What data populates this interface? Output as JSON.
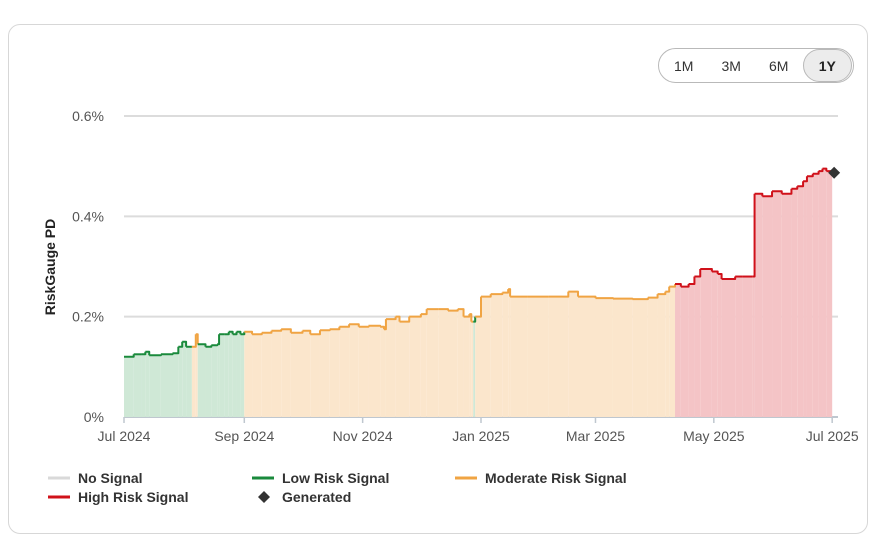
{
  "range_selector": {
    "options": [
      "1M",
      "3M",
      "6M",
      "1Y"
    ],
    "selected": "1Y"
  },
  "chart_data": {
    "type": "line",
    "ylabel": "RiskGauge PD",
    "xlabel": "",
    "ylim": [
      0,
      0.6
    ],
    "y_ticks": [
      0,
      0.2,
      0.4,
      0.6
    ],
    "y_tick_labels": [
      "0%",
      "0.2%",
      "0.4%",
      "0.6%"
    ],
    "x_range": [
      "2024-07-01",
      "2025-07-04"
    ],
    "x_ticks": [
      "2024-07-01",
      "2024-09-01",
      "2024-11-01",
      "2025-01-01",
      "2025-03-01",
      "2025-05-01",
      "2025-07-01"
    ],
    "x_tick_labels": [
      "Jul 2024",
      "Sep 2024",
      "Nov 2024",
      "Jan 2025",
      "Mar 2025",
      "May 2025",
      "Jul 2025"
    ],
    "grid": "horizontal",
    "area_fill": true,
    "colors": {
      "no_signal": "#d9d9d9",
      "low": "#1a8a3c",
      "moderate": "#f0a443",
      "high": "#d0111a",
      "generated": "#333333"
    },
    "series_points": [
      [
        "2024-07-01",
        0.12,
        "low"
      ],
      [
        "2024-07-06",
        0.125,
        "low"
      ],
      [
        "2024-07-10",
        0.125,
        "low"
      ],
      [
        "2024-07-12",
        0.13,
        "low"
      ],
      [
        "2024-07-14",
        0.123,
        "low"
      ],
      [
        "2024-07-20",
        0.125,
        "low"
      ],
      [
        "2024-07-26",
        0.127,
        "low"
      ],
      [
        "2024-07-29",
        0.14,
        "low"
      ],
      [
        "2024-07-31",
        0.15,
        "low"
      ],
      [
        "2024-08-02",
        0.14,
        "low"
      ],
      [
        "2024-08-05",
        0.14,
        "moderate"
      ],
      [
        "2024-08-07",
        0.165,
        "moderate"
      ],
      [
        "2024-08-08",
        0.145,
        "low"
      ],
      [
        "2024-08-12",
        0.14,
        "low"
      ],
      [
        "2024-08-15",
        0.143,
        "low"
      ],
      [
        "2024-08-18",
        0.145,
        "low"
      ],
      [
        "2024-08-19",
        0.165,
        "low"
      ],
      [
        "2024-08-22",
        0.165,
        "low"
      ],
      [
        "2024-08-24",
        0.17,
        "low"
      ],
      [
        "2024-08-26",
        0.165,
        "low"
      ],
      [
        "2024-08-28",
        0.17,
        "low"
      ],
      [
        "2024-08-30",
        0.165,
        "low"
      ],
      [
        "2024-09-01",
        0.17,
        "moderate"
      ],
      [
        "2024-09-05",
        0.165,
        "moderate"
      ],
      [
        "2024-09-10",
        0.168,
        "moderate"
      ],
      [
        "2024-09-15",
        0.172,
        "moderate"
      ],
      [
        "2024-09-20",
        0.175,
        "moderate"
      ],
      [
        "2024-09-25",
        0.168,
        "moderate"
      ],
      [
        "2024-10-01",
        0.172,
        "moderate"
      ],
      [
        "2024-10-05",
        0.165,
        "moderate"
      ],
      [
        "2024-10-10",
        0.173,
        "moderate"
      ],
      [
        "2024-10-15",
        0.175,
        "moderate"
      ],
      [
        "2024-10-20",
        0.18,
        "moderate"
      ],
      [
        "2024-10-25",
        0.185,
        "moderate"
      ],
      [
        "2024-10-30",
        0.18,
        "moderate"
      ],
      [
        "2024-11-04",
        0.182,
        "moderate"
      ],
      [
        "2024-11-10",
        0.18,
        "moderate"
      ],
      [
        "2024-11-12",
        0.175,
        "moderate"
      ],
      [
        "2024-11-13",
        0.195,
        "moderate"
      ],
      [
        "2024-11-18",
        0.2,
        "moderate"
      ],
      [
        "2024-11-20",
        0.19,
        "moderate"
      ],
      [
        "2024-11-25",
        0.2,
        "moderate"
      ],
      [
        "2024-12-01",
        0.205,
        "moderate"
      ],
      [
        "2024-12-04",
        0.215,
        "moderate"
      ],
      [
        "2024-12-10",
        0.215,
        "moderate"
      ],
      [
        "2024-12-15",
        0.212,
        "moderate"
      ],
      [
        "2024-12-20",
        0.215,
        "moderate"
      ],
      [
        "2024-12-23",
        0.2,
        "moderate"
      ],
      [
        "2024-12-26",
        0.205,
        "moderate"
      ],
      [
        "2024-12-27",
        0.19,
        "moderate"
      ],
      [
        "2024-12-28",
        0.19,
        "low"
      ],
      [
        "2024-12-29",
        0.2,
        "moderate"
      ],
      [
        "2025-01-01",
        0.24,
        "moderate"
      ],
      [
        "2025-01-06",
        0.245,
        "moderate"
      ],
      [
        "2025-01-12",
        0.248,
        "moderate"
      ],
      [
        "2025-01-15",
        0.255,
        "moderate"
      ],
      [
        "2025-01-16",
        0.24,
        "moderate"
      ],
      [
        "2025-01-25",
        0.24,
        "moderate"
      ],
      [
        "2025-02-05",
        0.24,
        "moderate"
      ],
      [
        "2025-02-12",
        0.24,
        "moderate"
      ],
      [
        "2025-02-15",
        0.25,
        "moderate"
      ],
      [
        "2025-02-20",
        0.24,
        "moderate"
      ],
      [
        "2025-03-01",
        0.237,
        "moderate"
      ],
      [
        "2025-03-10",
        0.236,
        "moderate"
      ],
      [
        "2025-03-20",
        0.235,
        "moderate"
      ],
      [
        "2025-03-28",
        0.238,
        "moderate"
      ],
      [
        "2025-04-02",
        0.245,
        "moderate"
      ],
      [
        "2025-04-06",
        0.25,
        "moderate"
      ],
      [
        "2025-04-08",
        0.26,
        "moderate"
      ],
      [
        "2025-04-11",
        0.265,
        "high"
      ],
      [
        "2025-04-14",
        0.26,
        "high"
      ],
      [
        "2025-04-18",
        0.265,
        "high"
      ],
      [
        "2025-04-21",
        0.28,
        "high"
      ],
      [
        "2025-04-24",
        0.295,
        "high"
      ],
      [
        "2025-04-30",
        0.29,
        "high"
      ],
      [
        "2025-05-03",
        0.285,
        "high"
      ],
      [
        "2025-05-05",
        0.275,
        "high"
      ],
      [
        "2025-05-12",
        0.28,
        "high"
      ],
      [
        "2025-05-16",
        0.28,
        "high"
      ],
      [
        "2025-05-21",
        0.28,
        "high"
      ],
      [
        "2025-05-22",
        0.445,
        "high"
      ],
      [
        "2025-05-26",
        0.44,
        "high"
      ],
      [
        "2025-05-31",
        0.45,
        "high"
      ],
      [
        "2025-06-05",
        0.445,
        "high"
      ],
      [
        "2025-06-10",
        0.455,
        "high"
      ],
      [
        "2025-06-13",
        0.46,
        "high"
      ],
      [
        "2025-06-16",
        0.47,
        "high"
      ],
      [
        "2025-06-18",
        0.48,
        "high"
      ],
      [
        "2025-06-21",
        0.485,
        "high"
      ],
      [
        "2025-06-24",
        0.49,
        "high"
      ],
      [
        "2025-06-26",
        0.495,
        "high"
      ],
      [
        "2025-06-28",
        0.49,
        "high"
      ],
      [
        "2025-07-01",
        0.485,
        "high"
      ]
    ],
    "generated_point": [
      "2025-07-02",
      0.487
    ],
    "legend": [
      {
        "key": "no_signal",
        "label": "No Signal",
        "marker": "line"
      },
      {
        "key": "low",
        "label": "Low Risk Signal",
        "marker": "line"
      },
      {
        "key": "moderate",
        "label": "Moderate Risk Signal",
        "marker": "line"
      },
      {
        "key": "high",
        "label": "High Risk Signal",
        "marker": "line"
      },
      {
        "key": "generated",
        "label": "Generated",
        "marker": "diamond"
      }
    ]
  }
}
